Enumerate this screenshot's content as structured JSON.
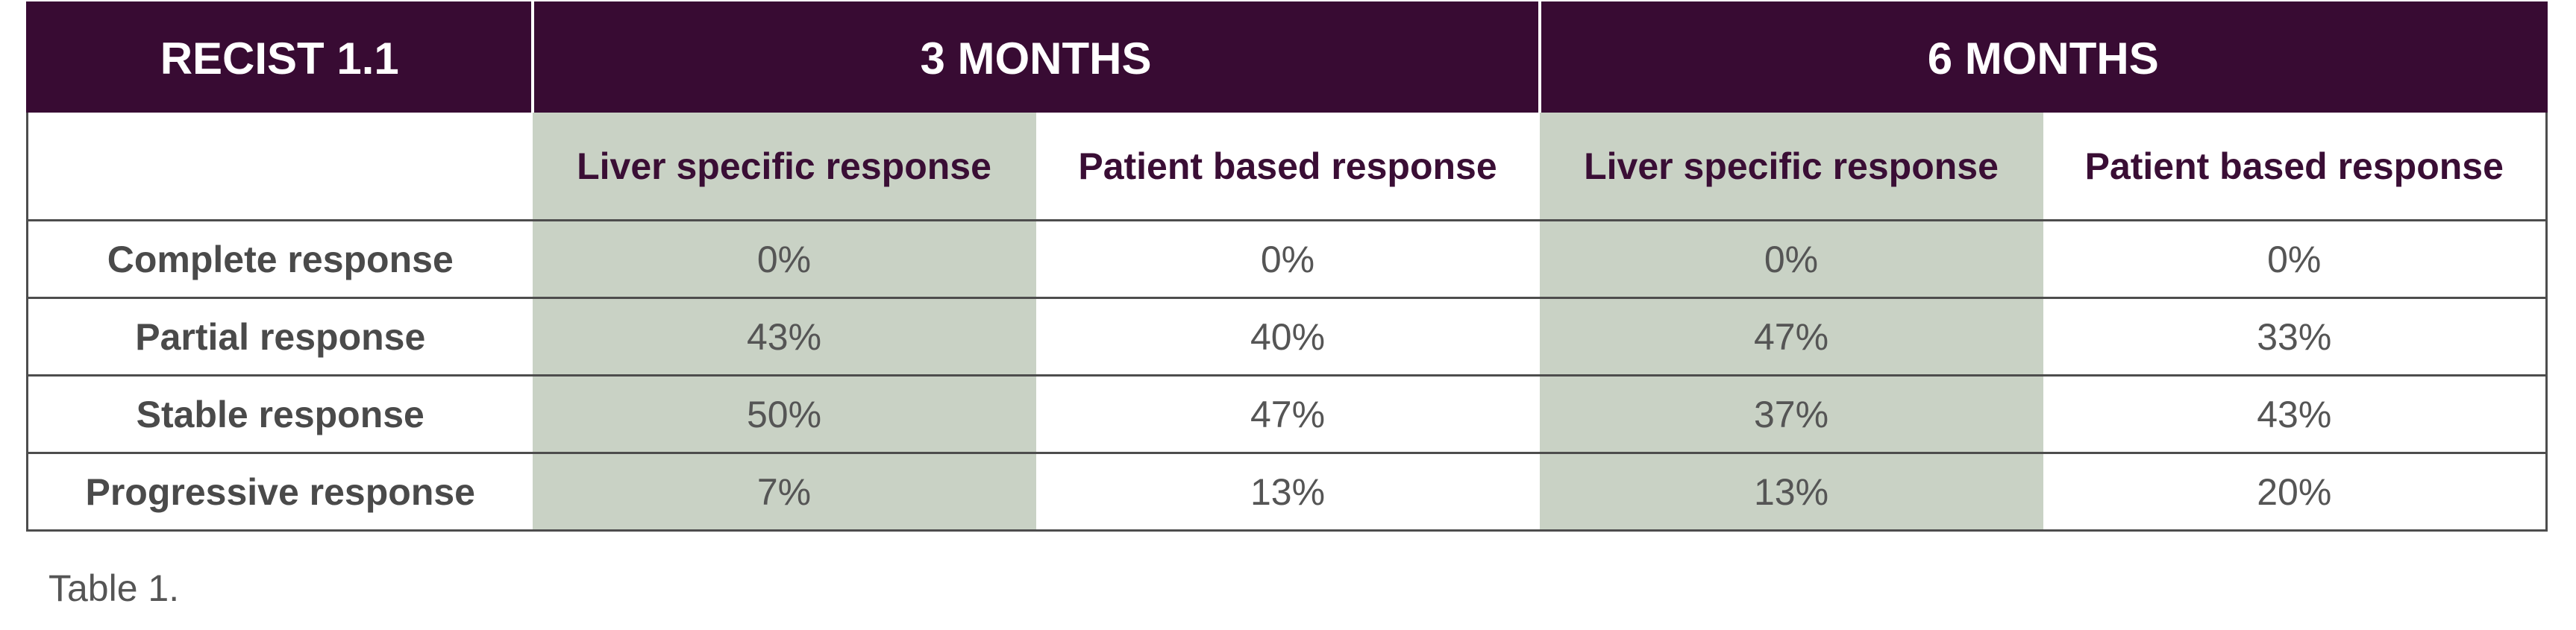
{
  "table": {
    "corner_label": "RECIST 1.1",
    "period_headers": [
      "3 MONTHS",
      "6 MONTHS"
    ],
    "sub_headers": [
      "Liver specific response",
      "Patient based response",
      "Liver specific response",
      "Patient based response"
    ],
    "rows": [
      {
        "label": "Complete response",
        "values": [
          "0%",
          "0%",
          "0%",
          "0%"
        ]
      },
      {
        "label": "Partial response",
        "values": [
          "43%",
          "40%",
          "47%",
          "33%"
        ]
      },
      {
        "label": "Stable response",
        "values": [
          "50%",
          "47%",
          "37%",
          "43%"
        ]
      },
      {
        "label": "Progressive response",
        "values": [
          "7%",
          "13%",
          "13%",
          "20%"
        ]
      }
    ]
  },
  "caption": "Table 1.",
  "colors": {
    "header_bg": "#380b33",
    "header_text": "#ffffff",
    "subheader_text": "#3a0e35",
    "shade_bg": "#c9d2c5",
    "body_text": "#555555",
    "grid": "#4d4d4d"
  }
}
